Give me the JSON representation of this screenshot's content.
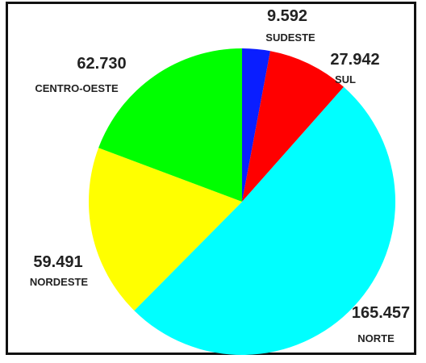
{
  "chart_data": {
    "type": "pie",
    "slices": [
      {
        "label": "SUDESTE",
        "value_text": "9.592",
        "value": 9592,
        "color": "#0a1eff"
      },
      {
        "label": "SUL",
        "value_text": "27.942",
        "value": 27942,
        "color": "#ff0000"
      },
      {
        "label": "NORTE",
        "value_text": "165.457",
        "value": 165457,
        "color": "#00ffff"
      },
      {
        "label": "NORDESTE",
        "value_text": "59.491",
        "value": 59491,
        "color": "#ffff00"
      },
      {
        "label": "CENTRO-OESTE",
        "value_text": "62.730",
        "value": 62730,
        "color": "#00ff00"
      }
    ],
    "start_angle_deg": 0,
    "direction": "clockwise",
    "legend": "none"
  }
}
